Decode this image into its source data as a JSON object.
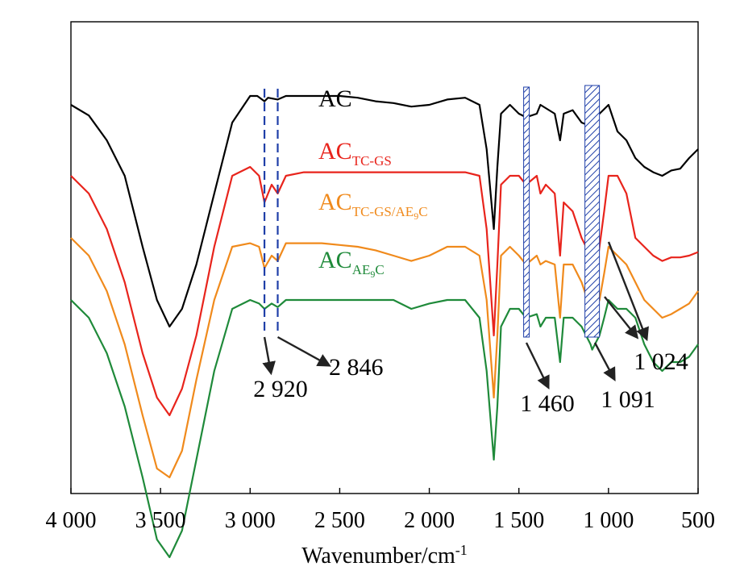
{
  "chart_data": {
    "type": "line",
    "xlabel": "Wavenumber/cm",
    "xlabel_sup": "-1",
    "xlim": [
      4000,
      500
    ],
    "x_reversed": true,
    "x_ticks": [
      4000,
      3500,
      3000,
      2500,
      2000,
      1500,
      1000,
      500
    ],
    "x_tick_labels": [
      "4 000",
      "3 500",
      "3 000",
      "2 500",
      "2 000",
      "1 500",
      "1 000",
      "500"
    ],
    "y_ticks_shown": false,
    "grid": false,
    "legend": "inline labels above each curve",
    "series": [
      {
        "name": "AC",
        "label_main": "AC",
        "label_sub": "",
        "color": "#000000",
        "points": [
          [
            4000,
            0.0
          ],
          [
            3900,
            -0.06
          ],
          [
            3800,
            -0.2
          ],
          [
            3700,
            -0.4
          ],
          [
            3600,
            -0.8
          ],
          [
            3520,
            -1.1
          ],
          [
            3450,
            -1.25
          ],
          [
            3380,
            -1.15
          ],
          [
            3300,
            -0.9
          ],
          [
            3200,
            -0.5
          ],
          [
            3100,
            -0.1
          ],
          [
            3000,
            0.05
          ],
          [
            2960,
            0.05
          ],
          [
            2920,
            0.02
          ],
          [
            2900,
            0.04
          ],
          [
            2846,
            0.03
          ],
          [
            2800,
            0.05
          ],
          [
            2700,
            0.05
          ],
          [
            2600,
            0.05
          ],
          [
            2500,
            0.05
          ],
          [
            2400,
            0.04
          ],
          [
            2300,
            0.02
          ],
          [
            2200,
            0.01
          ],
          [
            2100,
            -0.01
          ],
          [
            2000,
            0.0
          ],
          [
            1900,
            0.03
          ],
          [
            1800,
            0.04
          ],
          [
            1720,
            0.0
          ],
          [
            1680,
            -0.25
          ],
          [
            1640,
            -0.7
          ],
          [
            1620,
            -0.35
          ],
          [
            1600,
            -0.05
          ],
          [
            1550,
            0.0
          ],
          [
            1500,
            -0.05
          ],
          [
            1460,
            -0.07
          ],
          [
            1400,
            -0.05
          ],
          [
            1380,
            0.0
          ],
          [
            1300,
            -0.05
          ],
          [
            1270,
            -0.2
          ],
          [
            1250,
            -0.05
          ],
          [
            1200,
            -0.03
          ],
          [
            1150,
            -0.1
          ],
          [
            1100,
            -0.12
          ],
          [
            1091,
            -0.1
          ],
          [
            1050,
            -0.05
          ],
          [
            1000,
            0.0
          ],
          [
            950,
            -0.15
          ],
          [
            900,
            -0.2
          ],
          [
            850,
            -0.3
          ],
          [
            800,
            -0.35
          ],
          [
            750,
            -0.38
          ],
          [
            700,
            -0.4
          ],
          [
            650,
            -0.37
          ],
          [
            600,
            -0.36
          ],
          [
            550,
            -0.3
          ],
          [
            500,
            -0.25
          ]
        ]
      },
      {
        "name": "ACTC-GS",
        "label_main": "AC",
        "label_sub": "TC-GS",
        "color": "#e8241c",
        "points": [
          [
            4000,
            -0.4
          ],
          [
            3900,
            -0.5
          ],
          [
            3800,
            -0.7
          ],
          [
            3700,
            -1.0
          ],
          [
            3600,
            -1.4
          ],
          [
            3520,
            -1.65
          ],
          [
            3450,
            -1.75
          ],
          [
            3380,
            -1.6
          ],
          [
            3300,
            -1.3
          ],
          [
            3200,
            -0.8
          ],
          [
            3100,
            -0.4
          ],
          [
            3000,
            -0.35
          ],
          [
            2950,
            -0.4
          ],
          [
            2920,
            -0.55
          ],
          [
            2880,
            -0.45
          ],
          [
            2846,
            -0.5
          ],
          [
            2800,
            -0.4
          ],
          [
            2700,
            -0.38
          ],
          [
            2600,
            -0.38
          ],
          [
            2500,
            -0.38
          ],
          [
            2400,
            -0.38
          ],
          [
            2300,
            -0.38
          ],
          [
            2200,
            -0.38
          ],
          [
            2100,
            -0.38
          ],
          [
            2000,
            -0.38
          ],
          [
            1900,
            -0.38
          ],
          [
            1800,
            -0.38
          ],
          [
            1720,
            -0.4
          ],
          [
            1680,
            -0.7
          ],
          [
            1640,
            -1.3
          ],
          [
            1620,
            -0.9
          ],
          [
            1600,
            -0.45
          ],
          [
            1550,
            -0.4
          ],
          [
            1500,
            -0.4
          ],
          [
            1460,
            -0.45
          ],
          [
            1400,
            -0.4
          ],
          [
            1380,
            -0.5
          ],
          [
            1350,
            -0.45
          ],
          [
            1300,
            -0.5
          ],
          [
            1270,
            -0.85
          ],
          [
            1250,
            -0.55
          ],
          [
            1200,
            -0.6
          ],
          [
            1150,
            -0.75
          ],
          [
            1100,
            -0.85
          ],
          [
            1070,
            -0.95
          ],
          [
            1050,
            -0.8
          ],
          [
            1024,
            -0.6
          ],
          [
            1000,
            -0.4
          ],
          [
            950,
            -0.4
          ],
          [
            900,
            -0.5
          ],
          [
            850,
            -0.75
          ],
          [
            800,
            -0.8
          ],
          [
            750,
            -0.85
          ],
          [
            700,
            -0.88
          ],
          [
            650,
            -0.86
          ],
          [
            600,
            -0.86
          ],
          [
            550,
            -0.85
          ],
          [
            500,
            -0.83
          ]
        ]
      },
      {
        "name": "ACTC-GS/AE9C",
        "label_main": "AC",
        "label_sub": "TC-GS/AE",
        "label_sub_sub": "9",
        "label_sub_tail": "C",
        "color": "#f08a1c",
        "points": [
          [
            4000,
            -0.75
          ],
          [
            3900,
            -0.85
          ],
          [
            3800,
            -1.05
          ],
          [
            3700,
            -1.35
          ],
          [
            3600,
            -1.75
          ],
          [
            3520,
            -2.05
          ],
          [
            3450,
            -2.1
          ],
          [
            3380,
            -1.95
          ],
          [
            3300,
            -1.55
          ],
          [
            3200,
            -1.1
          ],
          [
            3100,
            -0.8
          ],
          [
            3000,
            -0.78
          ],
          [
            2950,
            -0.8
          ],
          [
            2920,
            -0.92
          ],
          [
            2880,
            -0.85
          ],
          [
            2846,
            -0.88
          ],
          [
            2800,
            -0.78
          ],
          [
            2700,
            -0.78
          ],
          [
            2600,
            -0.78
          ],
          [
            2500,
            -0.79
          ],
          [
            2400,
            -0.8
          ],
          [
            2300,
            -0.82
          ],
          [
            2200,
            -0.85
          ],
          [
            2100,
            -0.88
          ],
          [
            2000,
            -0.85
          ],
          [
            1900,
            -0.8
          ],
          [
            1800,
            -0.8
          ],
          [
            1720,
            -0.85
          ],
          [
            1680,
            -1.1
          ],
          [
            1640,
            -1.65
          ],
          [
            1620,
            -1.3
          ],
          [
            1600,
            -0.85
          ],
          [
            1550,
            -0.8
          ],
          [
            1500,
            -0.85
          ],
          [
            1460,
            -0.9
          ],
          [
            1400,
            -0.85
          ],
          [
            1380,
            -0.9
          ],
          [
            1350,
            -0.88
          ],
          [
            1300,
            -0.9
          ],
          [
            1270,
            -1.2
          ],
          [
            1250,
            -0.9
          ],
          [
            1200,
            -0.9
          ],
          [
            1150,
            -1.0
          ],
          [
            1100,
            -1.15
          ],
          [
            1091,
            -1.2
          ],
          [
            1050,
            -1.1
          ],
          [
            1024,
            -0.95
          ],
          [
            1000,
            -0.8
          ],
          [
            950,
            -0.85
          ],
          [
            900,
            -0.9
          ],
          [
            850,
            -1.0
          ],
          [
            800,
            -1.1
          ],
          [
            750,
            -1.15
          ],
          [
            700,
            -1.2
          ],
          [
            650,
            -1.18
          ],
          [
            600,
            -1.15
          ],
          [
            550,
            -1.12
          ],
          [
            500,
            -1.05
          ]
        ]
      },
      {
        "name": "ACAE9C",
        "label_main": "AC",
        "label_sub": "AE",
        "label_sub_sub": "9",
        "label_sub_tail": "C",
        "color": "#1f8a3a",
        "points": [
          [
            4000,
            -1.1
          ],
          [
            3900,
            -1.2
          ],
          [
            3800,
            -1.4
          ],
          [
            3700,
            -1.7
          ],
          [
            3600,
            -2.1
          ],
          [
            3520,
            -2.45
          ],
          [
            3450,
            -2.55
          ],
          [
            3380,
            -2.4
          ],
          [
            3300,
            -2.0
          ],
          [
            3200,
            -1.5
          ],
          [
            3100,
            -1.15
          ],
          [
            3000,
            -1.1
          ],
          [
            2950,
            -1.12
          ],
          [
            2920,
            -1.15
          ],
          [
            2880,
            -1.12
          ],
          [
            2846,
            -1.14
          ],
          [
            2800,
            -1.1
          ],
          [
            2700,
            -1.1
          ],
          [
            2600,
            -1.1
          ],
          [
            2500,
            -1.1
          ],
          [
            2400,
            -1.1
          ],
          [
            2300,
            -1.1
          ],
          [
            2200,
            -1.1
          ],
          [
            2100,
            -1.15
          ],
          [
            2000,
            -1.12
          ],
          [
            1900,
            -1.1
          ],
          [
            1800,
            -1.1
          ],
          [
            1720,
            -1.2
          ],
          [
            1680,
            -1.5
          ],
          [
            1640,
            -2.0
          ],
          [
            1620,
            -1.7
          ],
          [
            1600,
            -1.25
          ],
          [
            1550,
            -1.15
          ],
          [
            1500,
            -1.15
          ],
          [
            1460,
            -1.2
          ],
          [
            1400,
            -1.18
          ],
          [
            1380,
            -1.25
          ],
          [
            1350,
            -1.2
          ],
          [
            1300,
            -1.2
          ],
          [
            1270,
            -1.45
          ],
          [
            1250,
            -1.2
          ],
          [
            1200,
            -1.2
          ],
          [
            1150,
            -1.25
          ],
          [
            1100,
            -1.35
          ],
          [
            1091,
            -1.38
          ],
          [
            1050,
            -1.3
          ],
          [
            1024,
            -1.2
          ],
          [
            1000,
            -1.1
          ],
          [
            950,
            -1.15
          ],
          [
            900,
            -1.15
          ],
          [
            850,
            -1.2
          ],
          [
            800,
            -1.35
          ],
          [
            750,
            -1.45
          ],
          [
            700,
            -1.5
          ],
          [
            650,
            -1.45
          ],
          [
            600,
            -1.45
          ],
          [
            550,
            -1.42
          ],
          [
            500,
            -1.35
          ]
        ]
      }
    ],
    "annotations": [
      {
        "label": "2 920",
        "x": 2920,
        "style": "dashed-line"
      },
      {
        "label": "2 846",
        "x": 2846,
        "style": "dashed-line"
      },
      {
        "label": "1 460",
        "x": 1460,
        "style": "hatched-band"
      },
      {
        "label": "1 091",
        "x": 1091,
        "style": "hatched-band"
      },
      {
        "label": "1 024",
        "x": 1024,
        "style": "arrows"
      }
    ],
    "colors": {
      "annotation_blue": "#1f3fa8",
      "arrow": "#222222",
      "axis": "#000000"
    }
  }
}
